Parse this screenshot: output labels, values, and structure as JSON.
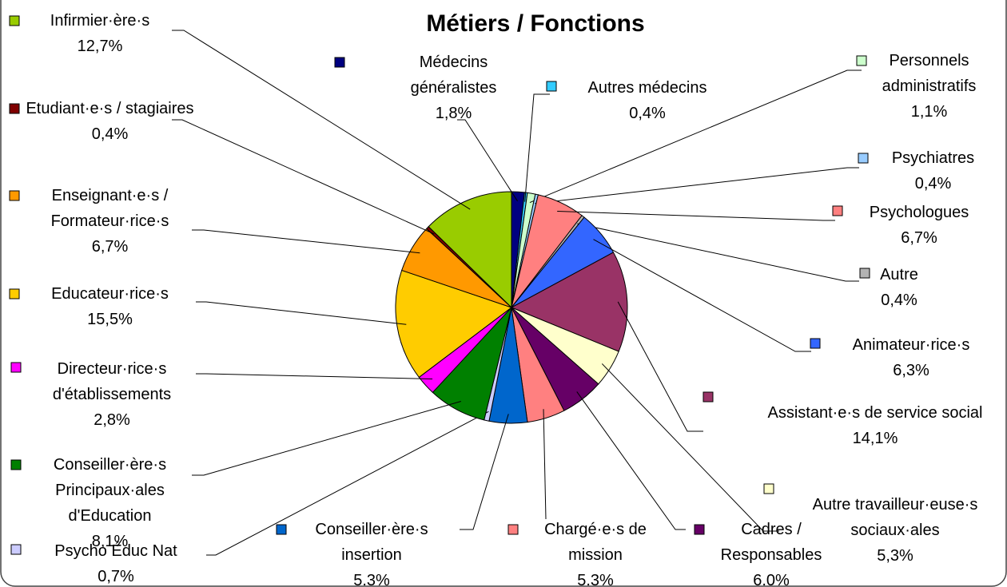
{
  "chart_data": {
    "type": "pie",
    "title": "Métiers / Fonctions",
    "series": [
      {
        "name": "Médecins généralistes",
        "color": "#000080",
        "values": [
          1.8
        ],
        "value_labels": [
          "1,8%"
        ]
      },
      {
        "name": "Autres médecins",
        "color": "#33ccff",
        "values": [
          0.4
        ],
        "value_labels": [
          "0,4%"
        ]
      },
      {
        "name": "Personnels administratifs",
        "color": "#ccffcc",
        "values": [
          1.1
        ],
        "value_labels": [
          "1,1%"
        ]
      },
      {
        "name": "Psychiatres",
        "color": "#99ccff",
        "values": [
          0.4
        ],
        "value_labels": [
          "0,4%"
        ]
      },
      {
        "name": "Psychologues",
        "color": "#ff8080",
        "values": [
          6.7
        ],
        "value_labels": [
          "6,7%"
        ]
      },
      {
        "name": "Autre",
        "color": "#b3b3b3",
        "values": [
          0.4
        ],
        "value_labels": [
          "0,4%"
        ]
      },
      {
        "name": "Animateur·rice·s",
        "color": "#3366ff",
        "values": [
          6.3
        ],
        "value_labels": [
          "6,3%"
        ]
      },
      {
        "name": "Assistant·e·s de service social",
        "color": "#993366",
        "values": [
          14.1
        ],
        "value_labels": [
          "14,1%"
        ]
      },
      {
        "name": "Autre travailleur·euse·s sociaux·ales",
        "color": "#ffffcc",
        "values": [
          5.3
        ],
        "value_labels": [
          "5,3%"
        ]
      },
      {
        "name": "Cadres / Responsables",
        "color": "#660066",
        "values": [
          6.0
        ],
        "value_labels": [
          "6.0%"
        ]
      },
      {
        "name": "Chargé·e·s de mission",
        "color": "#ff8080",
        "values": [
          5.3
        ],
        "value_labels": [
          "5.3%"
        ]
      },
      {
        "name": "Conseiller·ère·s insertion",
        "color": "#0066cc",
        "values": [
          5.3
        ],
        "value_labels": [
          "5.3%"
        ]
      },
      {
        "name": "Psycho Éduc Nat",
        "color": "#ccccff",
        "values": [
          0.7
        ],
        "value_labels": [
          "0,7%"
        ]
      },
      {
        "name": "Conseiller·ère·s Principaux·ales d'Education",
        "color": "#008000",
        "values": [
          8.1
        ],
        "value_labels": [
          "8,1%"
        ]
      },
      {
        "name": "Directeur·rice·s d'établissements",
        "color": "#ff00ff",
        "values": [
          2.8
        ],
        "value_labels": [
          "2,8%"
        ]
      },
      {
        "name": "Educateur·rice·s",
        "color": "#ffcc00",
        "values": [
          15.5
        ],
        "value_labels": [
          "15,5%"
        ]
      },
      {
        "name": "Enseignant·e·s / Formateur·rice·s",
        "color": "#ff9900",
        "values": [
          6.7
        ],
        "value_labels": [
          "6,7%"
        ]
      },
      {
        "name": "Etudiant·e·s / stagiaires",
        "color": "#800000",
        "values": [
          0.4
        ],
        "value_labels": [
          "0,4%"
        ]
      },
      {
        "name": "Infirmier·ère·s",
        "color": "#99cc00",
        "values": [
          12.7
        ],
        "value_labels": [
          "12,7%"
        ]
      }
    ]
  }
}
